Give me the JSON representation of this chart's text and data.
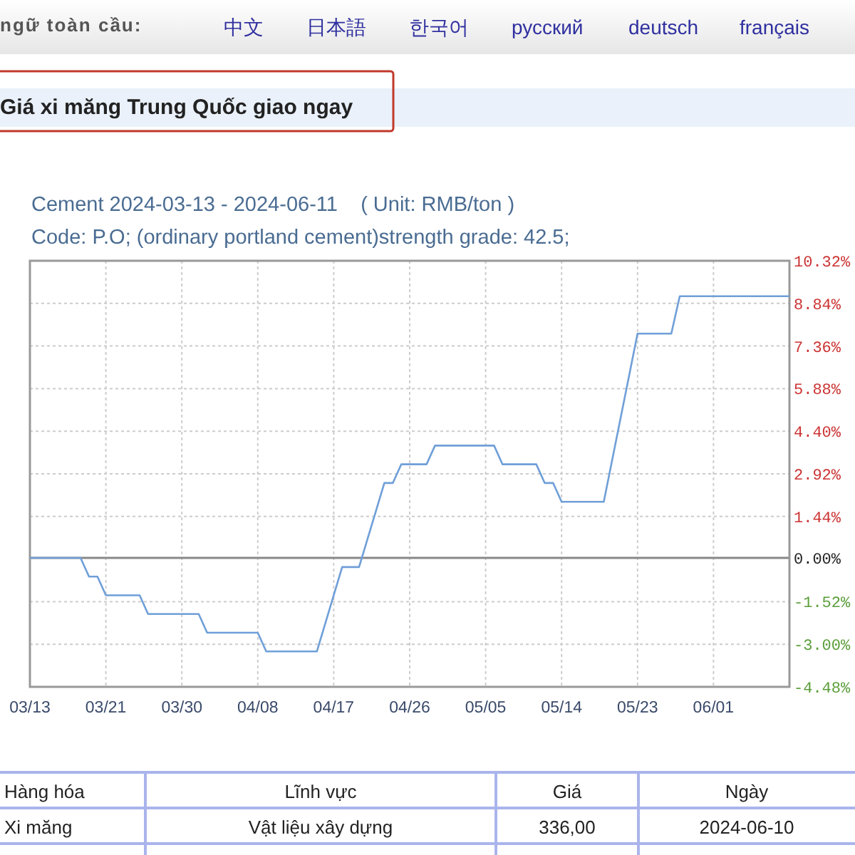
{
  "chart_data": {
    "type": "line",
    "title": "Cement 2024-03-13 - 2024-06-11    ( Unit: RMB/ton )",
    "subtitle": "Code: P.O; (ordinary portland cement)strength grade: 42.5;",
    "x": [
      "2024-03-13",
      "2024-03-19",
      "2024-03-20",
      "2024-03-21",
      "2024-03-22",
      "2024-03-26",
      "2024-03-27",
      "2024-04-02",
      "2024-04-03",
      "2024-04-09",
      "2024-04-10",
      "2024-04-16",
      "2024-04-19",
      "2024-04-21",
      "2024-04-24",
      "2024-04-25",
      "2024-04-26",
      "2024-04-29",
      "2024-04-30",
      "2024-05-07",
      "2024-05-08",
      "2024-05-12",
      "2024-05-13",
      "2024-05-14",
      "2024-05-15",
      "2024-05-20",
      "2024-05-24",
      "2024-05-28",
      "2024-05-29",
      "2024-06-11"
    ],
    "series": [
      {
        "color": "#6f9fd8",
        "axis": "y2",
        "values": [
          0,
          0,
          -0.65,
          -0.65,
          -1.3,
          -1.3,
          -1.95,
          -1.95,
          -2.6,
          -2.6,
          -3.25,
          -3.25,
          -0.32,
          -0.32,
          2.6,
          2.6,
          3.25,
          3.25,
          3.9,
          3.9,
          3.25,
          3.25,
          2.6,
          2.6,
          1.95,
          1.95,
          7.79,
          7.79,
          9.09,
          9.09
        ]
      }
    ],
    "xlim": [
      "2024-03-13",
      "2024-06-11"
    ],
    "xticks": [
      {
        "value": "2024-03-13",
        "label": "03/13"
      },
      {
        "value": "2024-03-22",
        "label": "03/21"
      },
      {
        "value": "2024-03-31",
        "label": "03/30"
      },
      {
        "value": "2024-04-09",
        "label": "04/08"
      },
      {
        "value": "2024-04-18",
        "label": "04/17"
      },
      {
        "value": "2024-04-27",
        "label": "04/26"
      },
      {
        "value": "2024-05-06",
        "label": "05/05"
      },
      {
        "value": "2024-05-15",
        "label": "05/14"
      },
      {
        "value": "2024-05-24",
        "label": "05/23"
      },
      {
        "value": "2024-06-02",
        "label": "06/01"
      }
    ],
    "y2lim": [
      -4.48,
      10.32
    ],
    "y2ticks": [
      {
        "value": -4.48,
        "label": "-4.48%"
      },
      {
        "value": -3.0,
        "label": "-3.00%"
      },
      {
        "value": -1.52,
        "label": "-1.52%"
      },
      {
        "value": 0,
        "label": "0.00%"
      },
      {
        "value": 1.44,
        "label": "1.44%"
      },
      {
        "value": 2.92,
        "label": "2.92%"
      },
      {
        "value": 4.4,
        "label": "4.40%"
      },
      {
        "value": 5.88,
        "label": "5.88%"
      },
      {
        "value": 7.36,
        "label": "7.36%"
      },
      {
        "value": 8.84,
        "label": "8.84%"
      },
      {
        "value": 10.32,
        "label": "10.32%"
      }
    ],
    "ref_lines": [
      {
        "axis": "y2",
        "value": 0,
        "color": "#888888"
      }
    ],
    "grid": true,
    "line_style": "solid",
    "annotations": [
      "ngữ toàn cầu:",
      "中文",
      "日本語",
      "한국어",
      "русский",
      "deutsch",
      "français",
      "Giá xi măng Trung Quốc giao ngay",
      "Hàng hóa",
      "Lĩnh vực",
      "Giá",
      "Ngày",
      "Xi măng",
      "Vật liệu xây dựng",
      "336,00",
      "2024-06-10"
    ]
  }
}
